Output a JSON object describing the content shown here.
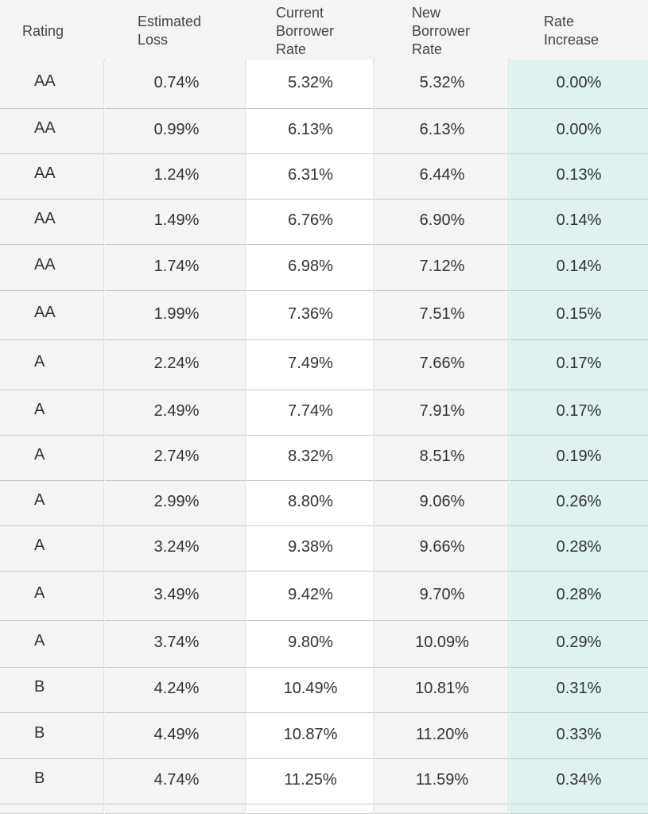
{
  "table": {
    "header": [
      [
        "Rating"
      ],
      [
        "Estimated",
        "Loss"
      ],
      [
        "Current",
        "Borrower",
        "Rate"
      ],
      [
        "New",
        "Borrower",
        "Rate"
      ],
      [
        "Rate",
        "Increase"
      ]
    ],
    "rows": [
      [
        "AA",
        "0.74%",
        "5.32%",
        "5.32%",
        "0.00%"
      ],
      [
        "AA",
        "0.99%",
        "6.13%",
        "6.13%",
        "0.00%"
      ],
      [
        "AA",
        "1.24%",
        "6.31%",
        "6.44%",
        "0.13%"
      ],
      [
        "AA",
        "1.49%",
        "6.76%",
        "6.90%",
        "0.14%"
      ],
      [
        "AA",
        "1.74%",
        "6.98%",
        "7.12%",
        "0.14%"
      ],
      [
        "AA",
        "1.99%",
        "7.36%",
        "7.51%",
        "0.15%"
      ],
      [
        "A",
        "2.24%",
        "7.49%",
        "7.66%",
        "0.17%"
      ],
      [
        "A",
        "2.49%",
        "7.74%",
        "7.91%",
        "0.17%"
      ],
      [
        "A",
        "2.74%",
        "8.32%",
        "8.51%",
        "0.19%"
      ],
      [
        "A",
        "2.99%",
        "8.80%",
        "9.06%",
        "0.26%"
      ],
      [
        "A",
        "3.24%",
        "9.38%",
        "9.66%",
        "0.28%"
      ],
      [
        "A",
        "3.49%",
        "9.42%",
        "9.70%",
        "0.28%"
      ],
      [
        "A",
        "3.74%",
        "9.80%",
        "10.09%",
        "0.29%"
      ],
      [
        "B",
        "4.24%",
        "10.49%",
        "10.81%",
        "0.31%"
      ],
      [
        "B",
        "4.49%",
        "10.87%",
        "11.20%",
        "0.33%"
      ],
      [
        "B",
        "4.74%",
        "11.25%",
        "11.59%",
        "0.34%"
      ]
    ]
  }
}
